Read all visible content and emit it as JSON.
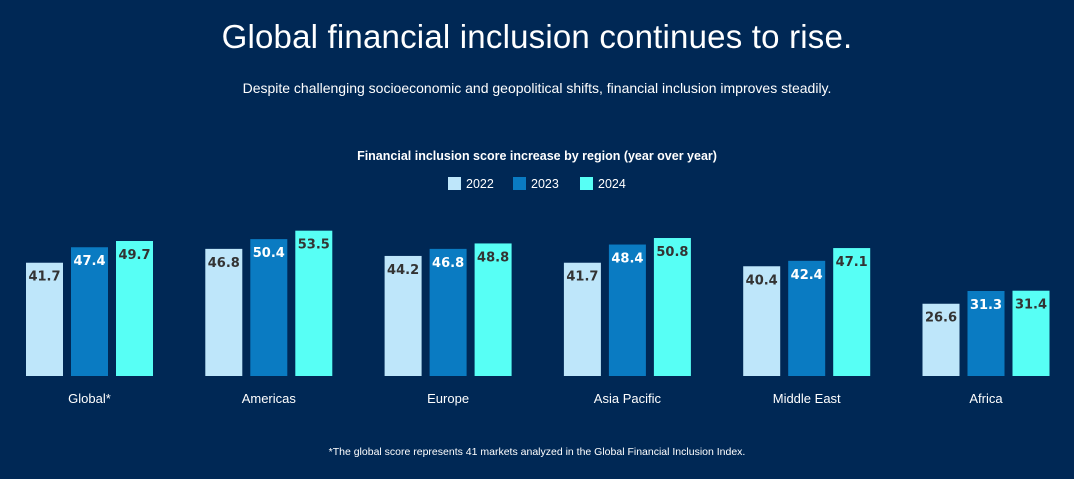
{
  "header": {
    "title": "Global financial inclusion continues to rise.",
    "subtitle": "Despite challenging socioeconomic and geopolitical shifts, financial inclusion improves steadily."
  },
  "footnote": "*The global score represents 41 markets analyzed in the Global Financial Inclusion Index.",
  "chart_data": {
    "type": "bar",
    "title": "Financial inclusion score increase by region (year over year)",
    "xlabel": "",
    "ylabel": "",
    "grid": false,
    "legend_position": "top-center",
    "categories": [
      "Global*",
      "Americas",
      "Europe",
      "Asia Pacific",
      "Middle East",
      "Africa"
    ],
    "series": [
      {
        "name": "2022",
        "color": "#bee6fa",
        "label_color": "#333333",
        "values": [
          "41.7",
          "46.8",
          "44.2",
          "41.7",
          "40.4",
          "26.6"
        ]
      },
      {
        "name": "2023",
        "color": "#0a7bc2",
        "label_color": "#ffffff",
        "values": [
          "47.4",
          "50.4",
          "46.8",
          "48.4",
          "42.4",
          "31.3"
        ]
      },
      {
        "name": "2024",
        "color": "#57fff5",
        "label_color": "#333333",
        "values": [
          "49.7",
          "53.5",
          "48.8",
          "50.8",
          "47.1",
          "31.4"
        ]
      }
    ],
    "ylim": [
      0,
      60
    ]
  }
}
